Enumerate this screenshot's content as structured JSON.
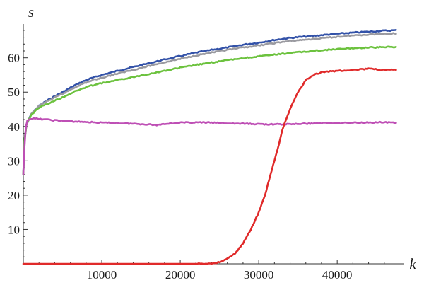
{
  "chart_data": {
    "type": "line",
    "title": "",
    "xlabel": "k",
    "ylabel": "s",
    "xlim": [
      0,
      48000
    ],
    "ylim": [
      0,
      69
    ],
    "x_ticks": [
      10000,
      20000,
      30000,
      40000
    ],
    "y_ticks": [
      10,
      20,
      30,
      40,
      50,
      60
    ],
    "grid": false,
    "legend": "none",
    "series": [
      {
        "color": "#3352a8",
        "points": [
          [
            0,
            26
          ],
          [
            150,
            36
          ],
          [
            400,
            40.5
          ],
          [
            700,
            42
          ],
          [
            1000,
            43.5
          ],
          [
            1500,
            44.8
          ],
          [
            2000,
            46
          ],
          [
            3000,
            47.5
          ],
          [
            4000,
            48.8
          ],
          [
            5000,
            50
          ],
          [
            6000,
            51.3
          ],
          [
            7000,
            52.5
          ],
          [
            8000,
            53.5
          ],
          [
            9000,
            54.3
          ],
          [
            10000,
            55
          ],
          [
            12000,
            56.2
          ],
          [
            14000,
            57.3
          ],
          [
            16000,
            58.4
          ],
          [
            18000,
            59.5
          ],
          [
            20000,
            60.5
          ],
          [
            22000,
            61.5
          ],
          [
            24000,
            62.3
          ],
          [
            26000,
            63
          ],
          [
            28000,
            63.8
          ],
          [
            30000,
            64.4
          ],
          [
            32000,
            65.2
          ],
          [
            34000,
            65.8
          ],
          [
            36000,
            66.2
          ],
          [
            38000,
            66.6
          ],
          [
            40000,
            67
          ],
          [
            42000,
            67.3
          ],
          [
            44000,
            67.6
          ],
          [
            46000,
            67.9
          ],
          [
            47500,
            68
          ]
        ]
      },
      {
        "color": "#9a9aa0",
        "points": [
          [
            0,
            26
          ],
          [
            150,
            36
          ],
          [
            400,
            40.5
          ],
          [
            700,
            42
          ],
          [
            1000,
            43.5
          ],
          [
            1500,
            44.8
          ],
          [
            2000,
            46
          ],
          [
            3000,
            47.3
          ],
          [
            4000,
            48.4
          ],
          [
            5000,
            49.5
          ],
          [
            6000,
            50.7
          ],
          [
            7000,
            51.9
          ],
          [
            8000,
            52.8
          ],
          [
            9000,
            53.6
          ],
          [
            10000,
            54.2
          ],
          [
            12000,
            55.4
          ],
          [
            14000,
            56.5
          ],
          [
            16000,
            57.6
          ],
          [
            18000,
            58.7
          ],
          [
            20000,
            59.7
          ],
          [
            22000,
            60.7
          ],
          [
            24000,
            61.5
          ],
          [
            26000,
            62.3
          ],
          [
            28000,
            63
          ],
          [
            30000,
            63.6
          ],
          [
            32000,
            64.3
          ],
          [
            34000,
            64.9
          ],
          [
            36000,
            65.3
          ],
          [
            38000,
            65.7
          ],
          [
            40000,
            66.1
          ],
          [
            42000,
            66.5
          ],
          [
            44000,
            66.8
          ],
          [
            46000,
            67
          ],
          [
            47500,
            67.1
          ]
        ]
      },
      {
        "color": "#6cc23e",
        "points": [
          [
            0,
            26
          ],
          [
            150,
            36
          ],
          [
            400,
            40.5
          ],
          [
            700,
            42
          ],
          [
            1000,
            43.3
          ],
          [
            1500,
            44.5
          ],
          [
            2000,
            45.5
          ],
          [
            3000,
            46.5
          ],
          [
            4000,
            47.5
          ],
          [
            5000,
            48.5
          ],
          [
            6000,
            49.6
          ],
          [
            7000,
            50.6
          ],
          [
            8000,
            51.4
          ],
          [
            9000,
            52.1
          ],
          [
            10000,
            52.6
          ],
          [
            12000,
            53.5
          ],
          [
            14000,
            54.4
          ],
          [
            16000,
            55.3
          ],
          [
            18000,
            56.2
          ],
          [
            20000,
            57.1
          ],
          [
            22000,
            57.9
          ],
          [
            24000,
            58.6
          ],
          [
            26000,
            59.3
          ],
          [
            28000,
            59.9
          ],
          [
            30000,
            60.4
          ],
          [
            32000,
            60.9
          ],
          [
            34000,
            61.4
          ],
          [
            36000,
            61.8
          ],
          [
            38000,
            62.2
          ],
          [
            40000,
            62.5
          ],
          [
            42000,
            62.8
          ],
          [
            44000,
            63
          ],
          [
            46000,
            63.1
          ],
          [
            47500,
            63.2
          ]
        ]
      },
      {
        "color": "#be4fb5",
        "points": [
          [
            0,
            26
          ],
          [
            150,
            34
          ],
          [
            300,
            39
          ],
          [
            500,
            41.8
          ],
          [
            1000,
            42.3
          ],
          [
            2000,
            42.2
          ],
          [
            4000,
            41.8
          ],
          [
            6000,
            41.5
          ],
          [
            8000,
            41.3
          ],
          [
            10000,
            41.1
          ],
          [
            12000,
            41
          ],
          [
            14000,
            40.8
          ],
          [
            16000,
            40.6
          ],
          [
            17000,
            40.4
          ],
          [
            18000,
            40.8
          ],
          [
            20000,
            41.1
          ],
          [
            22000,
            41.2
          ],
          [
            24000,
            41.1
          ],
          [
            26000,
            40.9
          ],
          [
            28000,
            40.8
          ],
          [
            30000,
            40.7
          ],
          [
            32000,
            40.6
          ],
          [
            34000,
            40.7
          ],
          [
            36000,
            40.8
          ],
          [
            38000,
            41
          ],
          [
            40000,
            41
          ],
          [
            42000,
            41.1
          ],
          [
            44000,
            41.2
          ],
          [
            46000,
            41.2
          ],
          [
            47500,
            41.1
          ]
        ]
      },
      {
        "color": "#e02a2a",
        "points": [
          [
            0,
            0
          ],
          [
            22000,
            0
          ],
          [
            24000,
            0.1
          ],
          [
            25000,
            0.5
          ],
          [
            26000,
            1.5
          ],
          [
            27000,
            3
          ],
          [
            28000,
            6
          ],
          [
            29000,
            10
          ],
          [
            30000,
            15
          ],
          [
            30800,
            20
          ],
          [
            31500,
            26
          ],
          [
            32000,
            30
          ],
          [
            32600,
            35
          ],
          [
            33000,
            39
          ],
          [
            33500,
            42
          ],
          [
            34000,
            45
          ],
          [
            35000,
            50
          ],
          [
            36000,
            53.5
          ],
          [
            37000,
            55
          ],
          [
            38000,
            55.8
          ],
          [
            40000,
            56.2
          ],
          [
            42000,
            56.5
          ],
          [
            44000,
            56.8
          ],
          [
            46000,
            56.4
          ],
          [
            47500,
            56.5
          ]
        ]
      }
    ]
  }
}
